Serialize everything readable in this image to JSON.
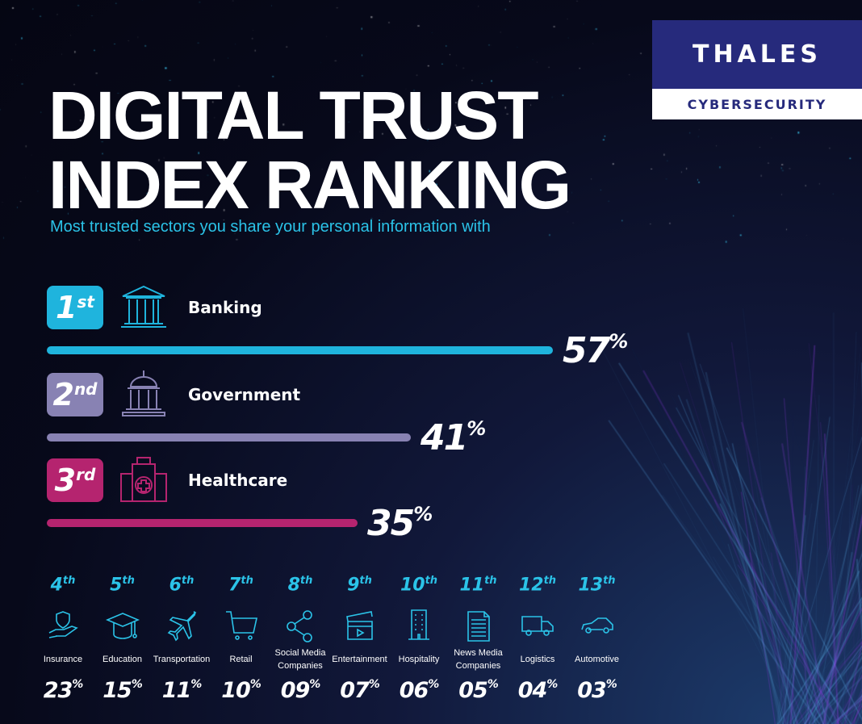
{
  "logo": {
    "brand": "THALES",
    "sub": "CYBERSECURITY"
  },
  "title_line1": "DIGITAL TRUST",
  "title_line2": "INDEX RANKING",
  "subtitle": "Most trusted sectors you share your personal information with",
  "chart_data": {
    "type": "bar",
    "title": "DIGITAL TRUST INDEX RANKING",
    "subtitle": "Most trusted sectors you share your personal information with",
    "top": [
      {
        "rank": "1",
        "suffix": "st",
        "name": "Banking",
        "value": 57,
        "color": "#1fb4dd",
        "icon": "bank-icon"
      },
      {
        "rank": "2",
        "suffix": "nd",
        "name": "Government",
        "value": 41,
        "color": "#8882b3",
        "icon": "government-building-icon"
      },
      {
        "rank": "3",
        "suffix": "rd",
        "name": "Healthcare",
        "value": 35,
        "color": "#b5246f",
        "icon": "hospital-icon"
      }
    ],
    "others": [
      {
        "rank": "4",
        "suffix": "th",
        "name": "Insurance",
        "value": "23",
        "icon": "hand-shield-icon"
      },
      {
        "rank": "5",
        "suffix": "th",
        "name": "Education",
        "value": "15",
        "icon": "graduation-cap-icon"
      },
      {
        "rank": "6",
        "suffix": "th",
        "name": "Transportation",
        "value": "11",
        "icon": "airplane-icon"
      },
      {
        "rank": "7",
        "suffix": "th",
        "name": "Retail",
        "value": "10",
        "icon": "shopping-cart-icon"
      },
      {
        "rank": "8",
        "suffix": "th",
        "name": "Social Media Companies",
        "value": "09",
        "icon": "share-icon"
      },
      {
        "rank": "9",
        "suffix": "th",
        "name": "Entertainment",
        "value": "07",
        "icon": "clapperboard-icon"
      },
      {
        "rank": "10",
        "suffix": "th",
        "name": "Hospitality",
        "value": "06",
        "icon": "hotel-building-icon"
      },
      {
        "rank": "11",
        "suffix": "th",
        "name": "News Media Companies",
        "value": "05",
        "icon": "document-icon"
      },
      {
        "rank": "12",
        "suffix": "th",
        "name": "Logistics",
        "value": "04",
        "icon": "truck-icon"
      },
      {
        "rank": "13",
        "suffix": "th",
        "name": "Automotive",
        "value": "03",
        "icon": "car-icon"
      }
    ],
    "unit": "%"
  }
}
